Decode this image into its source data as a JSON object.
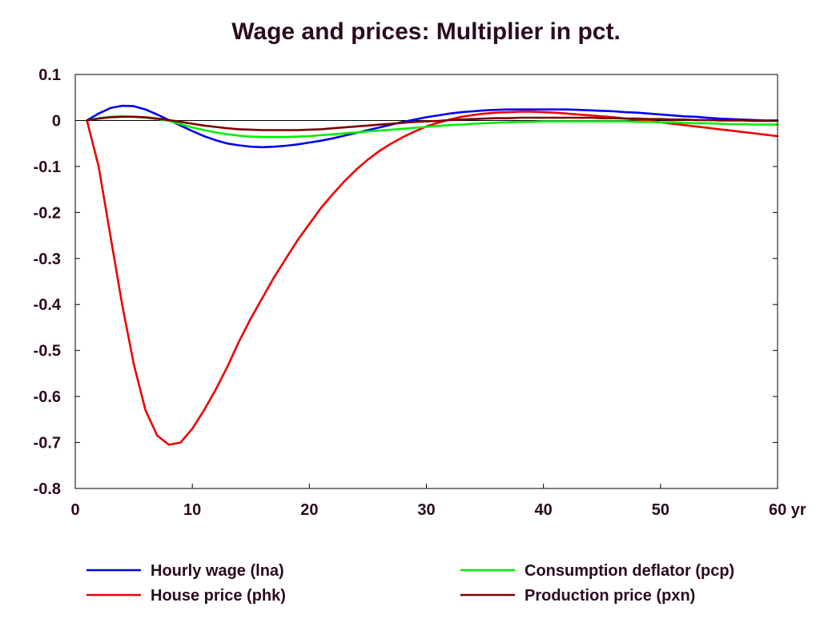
{
  "chart_data": {
    "type": "line",
    "title": "Wage and prices: Multiplier in pct.",
    "xlabel": "",
    "ylabel": "",
    "x_unit": "yr",
    "xlim": [
      0,
      60
    ],
    "ylim": [
      -0.8,
      0.1
    ],
    "xticks": [
      0,
      10,
      20,
      30,
      40,
      50,
      60
    ],
    "xtick_labels": [
      "0",
      "10",
      "20",
      "30",
      "40",
      "50",
      "60 yr"
    ],
    "yticks": [
      0.1,
      0,
      -0.1,
      -0.2,
      -0.3,
      -0.4,
      -0.5,
      -0.6,
      -0.7,
      -0.8
    ],
    "ytick_labels": [
      "0.1",
      "0",
      "-0.1",
      "-0.2",
      "-0.3",
      "-0.4",
      "-0.5",
      "-0.6",
      "-0.7",
      "-0.8"
    ],
    "grid": false,
    "legend_position": "bottom",
    "x": [
      1,
      2,
      3,
      4,
      5,
      6,
      7,
      8,
      9,
      10,
      11,
      12,
      13,
      14,
      15,
      16,
      17,
      18,
      19,
      20,
      21,
      22,
      23,
      24,
      25,
      26,
      27,
      28,
      29,
      30,
      31,
      32,
      33,
      34,
      35,
      36,
      37,
      38,
      39,
      40,
      41,
      42,
      43,
      44,
      45,
      46,
      47,
      48,
      49,
      50,
      51,
      52,
      53,
      54,
      55,
      56,
      57,
      58,
      59,
      60
    ],
    "series": [
      {
        "name": "Hourly wage (lna)",
        "color": "#0000ee",
        "values": [
          0,
          0.015,
          0.027,
          0.032,
          0.031,
          0.024,
          0.013,
          0.001,
          -0.011,
          -0.023,
          -0.034,
          -0.043,
          -0.05,
          -0.054,
          -0.057,
          -0.058,
          -0.057,
          -0.055,
          -0.052,
          -0.048,
          -0.044,
          -0.039,
          -0.033,
          -0.027,
          -0.021,
          -0.015,
          -0.009,
          -0.003,
          0.002,
          0.007,
          0.011,
          0.015,
          0.018,
          0.02,
          0.022,
          0.023,
          0.024,
          0.024,
          0.024,
          0.024,
          0.024,
          0.024,
          0.023,
          0.022,
          0.021,
          0.02,
          0.018,
          0.017,
          0.015,
          0.013,
          0.011,
          0.009,
          0.008,
          0.006,
          0.004,
          0.003,
          0.002,
          0.001,
          0,
          0
        ]
      },
      {
        "name": "House price (phk)",
        "color": "#ee0000",
        "values": [
          0,
          -0.1,
          -0.25,
          -0.4,
          -0.53,
          -0.63,
          -0.685,
          -0.705,
          -0.7,
          -0.67,
          -0.63,
          -0.585,
          -0.535,
          -0.48,
          -0.43,
          -0.385,
          -0.34,
          -0.3,
          -0.26,
          -0.225,
          -0.19,
          -0.16,
          -0.132,
          -0.107,
          -0.085,
          -0.066,
          -0.05,
          -0.036,
          -0.024,
          -0.013,
          -0.005,
          0.002,
          0.008,
          0.012,
          0.015,
          0.017,
          0.018,
          0.019,
          0.019,
          0.018,
          0.017,
          0.015,
          0.013,
          0.011,
          0.009,
          0.007,
          0.004,
          0.002,
          -0.001,
          -0.004,
          -0.007,
          -0.01,
          -0.013,
          -0.016,
          -0.019,
          -0.022,
          -0.025,
          -0.028,
          -0.031,
          -0.034
        ]
      },
      {
        "name": "Consumption deflator (pcp)",
        "color": "#00ee00",
        "values": [
          0,
          0.005,
          0.008,
          0.009,
          0.008,
          0.006,
          0.003,
          -0.001,
          -0.008,
          -0.015,
          -0.021,
          -0.026,
          -0.03,
          -0.033,
          -0.035,
          -0.036,
          -0.036,
          -0.036,
          -0.035,
          -0.034,
          -0.032,
          -0.03,
          -0.028,
          -0.026,
          -0.024,
          -0.022,
          -0.02,
          -0.018,
          -0.016,
          -0.014,
          -0.012,
          -0.01,
          -0.009,
          -0.007,
          -0.006,
          -0.005,
          -0.004,
          -0.003,
          -0.003,
          -0.002,
          -0.002,
          -0.002,
          -0.002,
          -0.002,
          -0.002,
          -0.002,
          -0.002,
          -0.003,
          -0.003,
          -0.004,
          -0.004,
          -0.005,
          -0.006,
          -0.006,
          -0.007,
          -0.008,
          -0.008,
          -0.009,
          -0.009,
          -0.009
        ]
      },
      {
        "name": "Production price (pxn)",
        "color": "#7a0000",
        "values": [
          0,
          0.004,
          0.007,
          0.008,
          0.008,
          0.007,
          0.004,
          0.001,
          -0.003,
          -0.007,
          -0.011,
          -0.014,
          -0.017,
          -0.019,
          -0.02,
          -0.021,
          -0.021,
          -0.021,
          -0.021,
          -0.02,
          -0.019,
          -0.017,
          -0.015,
          -0.013,
          -0.011,
          -0.009,
          -0.007,
          -0.005,
          -0.003,
          -0.002,
          -0.001,
          0.001,
          0.002,
          0.003,
          0.004,
          0.005,
          0.005,
          0.006,
          0.006,
          0.006,
          0.006,
          0.006,
          0.006,
          0.006,
          0.005,
          0.005,
          0.004,
          0.004,
          0.003,
          0.003,
          0.002,
          0.002,
          0.001,
          0.001,
          0,
          0,
          0,
          -0.001,
          -0.001,
          -0.001
        ]
      }
    ]
  }
}
